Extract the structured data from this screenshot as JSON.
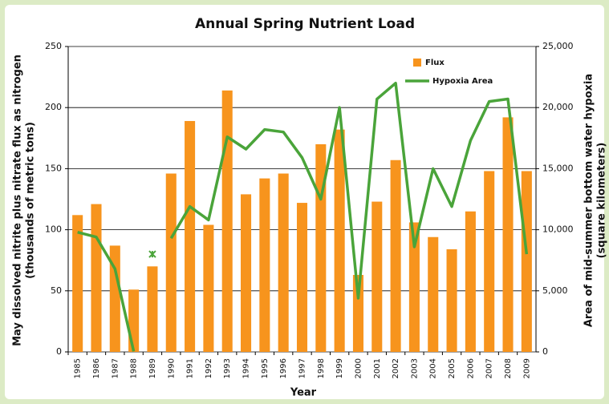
{
  "chart_data": {
    "type": "bar-line",
    "title": "Annual Spring Nutrient Load",
    "xlabel": "Year",
    "ylabel": [
      "May dissolved nitrite plus nitrate flux as nitrogen",
      "(thousands of metric tons)"
    ],
    "y2label": [
      "Area of mid-summer bottom water hypoxia",
      "(square kilometers)"
    ],
    "categories": [
      "1985",
      "1986",
      "1987",
      "1988",
      "1989",
      "1990",
      "1991",
      "1992",
      "1993",
      "1994",
      "1995",
      "1996",
      "1997",
      "1998",
      "1999",
      "2000",
      "2001",
      "2002",
      "2003",
      "2004",
      "2005",
      "2006",
      "2007",
      "2008",
      "2009"
    ],
    "series": [
      {
        "name": "Flux",
        "type": "bar",
        "color": "#f7941d",
        "values": [
          112,
          121,
          87,
          51,
          70,
          146,
          189,
          104,
          214,
          129,
          142,
          146,
          122,
          170,
          182,
          63,
          123,
          157,
          106,
          94,
          84,
          115,
          148,
          192,
          148
        ]
      },
      {
        "name": "Hypoxia Area",
        "type": "line",
        "axis": "y2",
        "color": "#4aa43a",
        "values": [
          9800,
          9400,
          6800,
          40,
          null,
          9300,
          11900,
          10800,
          17600,
          16600,
          18200,
          18000,
          15900,
          12500,
          20000,
          4400,
          20700,
          22000,
          8600,
          15000,
          11900,
          17300,
          20500,
          20700,
          8000
        ]
      },
      {
        "type": "point",
        "axis": "y2",
        "color": "#4aa43a",
        "values": [
          null,
          null,
          null,
          null,
          8000,
          null,
          null,
          null,
          null,
          null,
          null,
          null,
          null,
          null,
          null,
          null,
          null,
          null,
          null,
          null,
          null,
          null,
          null,
          null,
          null
        ]
      }
    ],
    "ylim": [
      0,
      250
    ],
    "yticks": [
      0,
      50,
      100,
      150,
      200,
      250
    ],
    "y2lim": [
      0,
      25000
    ],
    "y2ticks": [
      0,
      {
        "value": 5000,
        "label": "5,000"
      },
      {
        "value": 10000,
        "label": "10,000"
      },
      {
        "value": 15000,
        "label": "15,000"
      },
      {
        "value": 20000,
        "label": "20,000"
      },
      {
        "value": 25000,
        "label": "25,000"
      }
    ],
    "grid": true,
    "legend": "upper right"
  }
}
